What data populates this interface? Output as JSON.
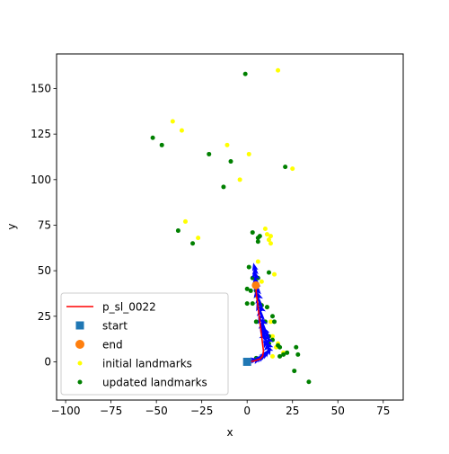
{
  "chart_data": {
    "type": "scatter",
    "title": "",
    "xlabel": "x",
    "ylabel": "y",
    "xlim": [
      -105,
      86
    ],
    "ylim": [
      -21,
      169
    ],
    "xticks": [
      -100,
      -75,
      -50,
      -25,
      0,
      25,
      50,
      75
    ],
    "yticks": [
      0,
      25,
      50,
      75,
      100,
      125,
      150
    ],
    "xtick_labels": [
      "−100",
      "−75",
      "−50",
      "−25",
      "0",
      "25",
      "50",
      "75"
    ],
    "ytick_labels": [
      "0",
      "25",
      "50",
      "75",
      "100",
      "125",
      "150"
    ],
    "grid": false,
    "legend_position": "lower-left",
    "legend": {
      "path": "p_sl_0022",
      "start": "start",
      "end": "end",
      "initial": "initial landmarks",
      "updated": "updated landmarks"
    },
    "colors": {
      "path": "#ff0000",
      "start": "#1f77b4",
      "end": "#ff7f0e",
      "initial": "#ffff00",
      "updated": "#008000",
      "poses": "#0000ff"
    },
    "path": [
      [
        0,
        0
      ],
      [
        4,
        0.5
      ],
      [
        7,
        1.5
      ],
      [
        8.5,
        3
      ],
      [
        9,
        6
      ],
      [
        8.5,
        10
      ],
      [
        8,
        14
      ],
      [
        7.5,
        18
      ],
      [
        7,
        22
      ],
      [
        6.5,
        26
      ],
      [
        6,
        30
      ],
      [
        5.5,
        34
      ],
      [
        5,
        38
      ],
      [
        4.8,
        42
      ]
    ],
    "poses": [
      [
        2,
        0.5
      ],
      [
        4,
        1
      ],
      [
        5.5,
        1
      ],
      [
        7,
        2
      ],
      [
        8,
        2.5
      ],
      [
        9,
        3.5
      ],
      [
        10,
        4
      ],
      [
        11,
        5
      ],
      [
        12,
        6
      ],
      [
        12,
        7
      ],
      [
        11,
        8
      ],
      [
        12,
        9
      ],
      [
        10,
        10
      ],
      [
        11,
        11
      ],
      [
        12,
        12
      ],
      [
        10,
        13
      ],
      [
        9,
        14
      ],
      [
        11,
        15
      ],
      [
        9,
        16
      ],
      [
        10,
        17
      ],
      [
        8,
        18
      ],
      [
        9,
        19
      ],
      [
        8,
        20
      ],
      [
        9,
        22
      ],
      [
        7,
        23
      ],
      [
        8,
        25
      ],
      [
        7,
        27
      ],
      [
        8,
        29
      ],
      [
        6,
        30
      ],
      [
        7,
        32
      ],
      [
        6,
        34
      ],
      [
        6.5,
        36
      ],
      [
        5,
        37
      ],
      [
        6,
        39
      ],
      [
        5,
        41
      ],
      [
        5.5,
        43
      ],
      [
        4.5,
        45
      ],
      [
        5,
        47
      ],
      [
        4,
        48
      ],
      [
        4.5,
        50
      ],
      [
        4,
        52
      ]
    ],
    "start": [
      0,
      0
    ],
    "end": [
      4.8,
      42
    ],
    "initial_landmarks": [
      [
        17,
        160
      ],
      [
        -41,
        132
      ],
      [
        -36,
        127
      ],
      [
        -11,
        119
      ],
      [
        1,
        114
      ],
      [
        25,
        106
      ],
      [
        -4,
        100
      ],
      [
        -34,
        77
      ],
      [
        -27,
        68
      ],
      [
        10,
        73
      ],
      [
        11,
        70
      ],
      [
        13,
        69
      ],
      [
        12,
        67
      ],
      [
        13,
        65
      ],
      [
        6,
        55
      ],
      [
        15,
        48
      ],
      [
        8,
        44
      ],
      [
        5,
        36
      ],
      [
        7,
        32
      ],
      [
        11,
        30
      ],
      [
        13,
        22
      ],
      [
        14,
        14
      ],
      [
        17,
        10
      ],
      [
        16,
        8
      ],
      [
        20,
        5
      ],
      [
        14,
        3
      ]
    ],
    "updated_landmarks": [
      [
        -1,
        158
      ],
      [
        -52,
        123
      ],
      [
        -47,
        119
      ],
      [
        -21,
        114
      ],
      [
        -9,
        110
      ],
      [
        21,
        107
      ],
      [
        -13,
        96
      ],
      [
        -38,
        72
      ],
      [
        -30,
        65
      ],
      [
        3,
        71
      ],
      [
        6,
        68
      ],
      [
        7,
        69
      ],
      [
        6,
        66
      ],
      [
        12,
        49
      ],
      [
        1,
        52
      ],
      [
        3,
        46
      ],
      [
        6,
        46
      ],
      [
        0,
        40
      ],
      [
        2,
        39
      ],
      [
        5,
        39
      ],
      [
        0,
        32
      ],
      [
        3,
        32
      ],
      [
        8,
        31
      ],
      [
        11,
        30
      ],
      [
        14,
        25
      ],
      [
        15,
        22
      ],
      [
        5,
        22
      ],
      [
        10,
        22
      ],
      [
        12,
        14
      ],
      [
        14,
        12
      ],
      [
        12,
        10
      ],
      [
        17,
        9
      ],
      [
        18,
        8
      ],
      [
        27,
        8
      ],
      [
        20,
        4
      ],
      [
        18,
        3
      ],
      [
        22,
        5
      ],
      [
        28,
        4
      ],
      [
        26,
        -5
      ],
      [
        34,
        -11
      ],
      [
        5,
        2
      ]
    ]
  }
}
